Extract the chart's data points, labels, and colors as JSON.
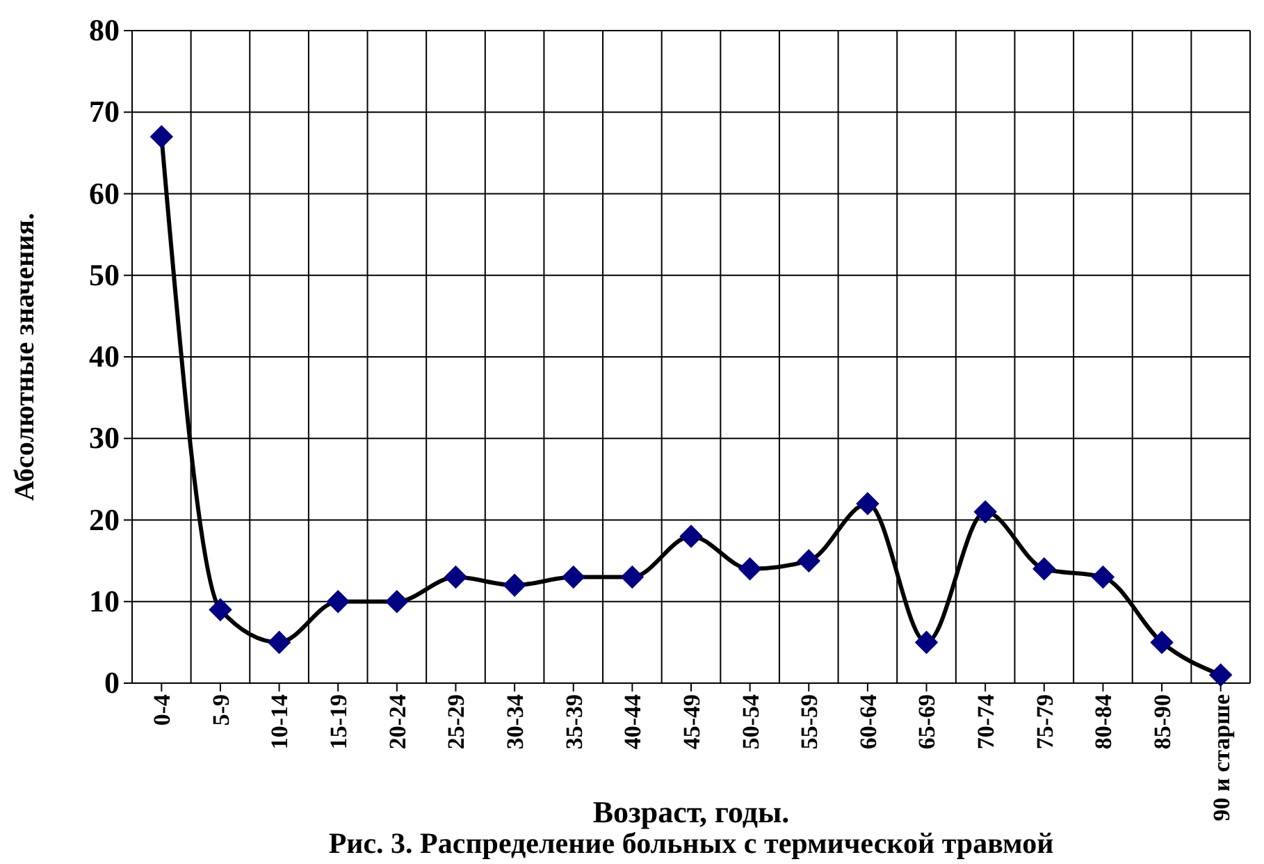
{
  "chart_data": {
    "type": "line",
    "title": "Рис. 3. Распределение больных с термической травмой",
    "xlabel": "Возраст, годы.",
    "ylabel": "Абсолютные значения.",
    "categories": [
      "0-4",
      "5-9",
      "10-14",
      "15-19",
      "20-24",
      "25-29",
      "30-34",
      "35-39",
      "40-44",
      "45-49",
      "50-54",
      "55-59",
      "60-64",
      "65-69",
      "70-74",
      "75-79",
      "80-84",
      "85-90",
      "90 и старше"
    ],
    "series": [
      {
        "color": "#000080",
        "values": [
          67,
          9,
          5,
          10,
          10,
          13,
          12,
          13,
          13,
          18,
          14,
          15,
          22,
          5,
          21,
          14,
          13,
          5,
          1
        ]
      }
    ],
    "ylim": [
      0,
      80
    ],
    "yticks": [
      0,
      10,
      20,
      30,
      40,
      50,
      60,
      70,
      80
    ],
    "grid": true,
    "marker": "diamond",
    "line_style": "solid"
  }
}
